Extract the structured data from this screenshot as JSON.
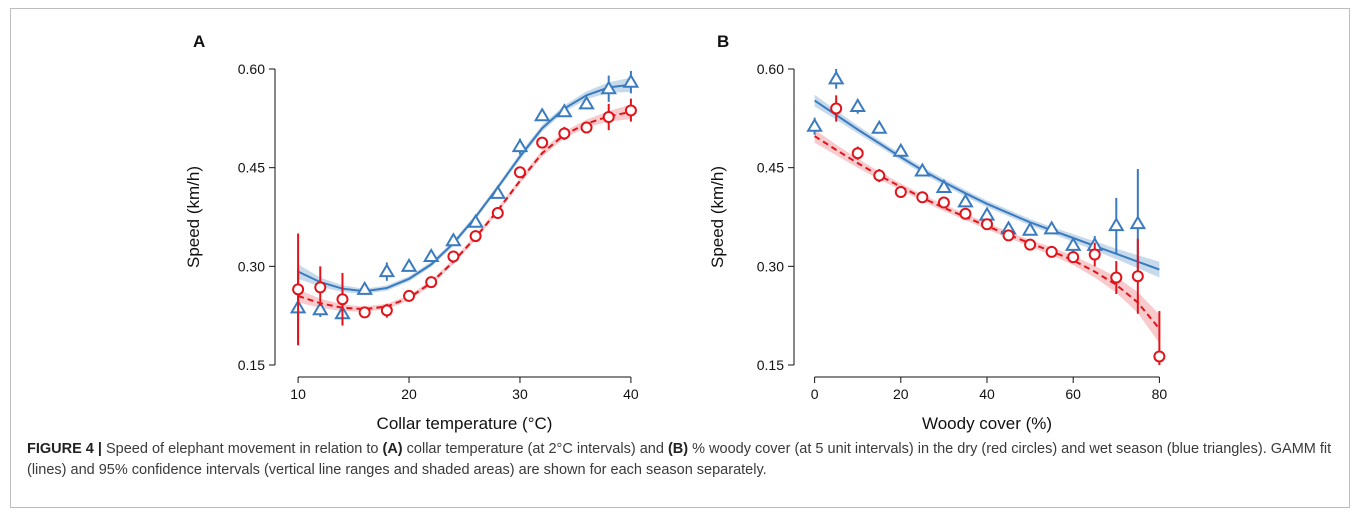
{
  "colors": {
    "dry": "#e0141a",
    "dry_band": "#f6b8bb",
    "wet": "#3a7bbf",
    "wet_band": "#b3cde6",
    "axis": "#111111"
  },
  "chart_data": [
    {
      "type": "scatter",
      "panel_label": "A",
      "xlabel": "Collar temperature (°C)",
      "ylabel": "Speed (km/h)",
      "xlim": [
        9,
        41
      ],
      "ylim": [
        0.15,
        0.6
      ],
      "xticks": [
        10,
        20,
        30,
        40
      ],
      "yticks": [
        "0.15",
        "0.30",
        "0.45",
        "0.60"
      ],
      "grid": false,
      "series": [
        {
          "season": "dry",
          "marker": "circle",
          "line_style": "dashed",
          "points": [
            {
              "x": 10,
              "y": 0.265,
              "lo": 0.18,
              "hi": 0.35
            },
            {
              "x": 12,
              "y": 0.268,
              "lo": 0.24,
              "hi": 0.3
            },
            {
              "x": 14,
              "y": 0.25,
              "lo": 0.21,
              "hi": 0.29
            },
            {
              "x": 16,
              "y": 0.23,
              "lo": 0.225,
              "hi": 0.235
            },
            {
              "x": 18,
              "y": 0.233,
              "lo": 0.222,
              "hi": 0.243
            },
            {
              "x": 20,
              "y": 0.255,
              "lo": 0.249,
              "hi": 0.261
            },
            {
              "x": 22,
              "y": 0.276,
              "lo": 0.27,
              "hi": 0.282
            },
            {
              "x": 24,
              "y": 0.315,
              "lo": 0.309,
              "hi": 0.321
            },
            {
              "x": 26,
              "y": 0.346,
              "lo": 0.34,
              "hi": 0.352
            },
            {
              "x": 28,
              "y": 0.381,
              "lo": 0.375,
              "hi": 0.387
            },
            {
              "x": 30,
              "y": 0.443,
              "lo": 0.435,
              "hi": 0.451
            },
            {
              "x": 32,
              "y": 0.488,
              "lo": 0.48,
              "hi": 0.496
            },
            {
              "x": 34,
              "y": 0.502,
              "lo": 0.492,
              "hi": 0.512
            },
            {
              "x": 36,
              "y": 0.511,
              "lo": 0.503,
              "hi": 0.519
            },
            {
              "x": 38,
              "y": 0.527,
              "lo": 0.507,
              "hi": 0.547
            },
            {
              "x": 40,
              "y": 0.537,
              "lo": 0.52,
              "hi": 0.555
            }
          ],
          "fit": [
            {
              "x": 10,
              "y": 0.255,
              "lo": 0.245,
              "hi": 0.265
            },
            {
              "x": 12,
              "y": 0.244,
              "lo": 0.237,
              "hi": 0.251
            },
            {
              "x": 14,
              "y": 0.237,
              "lo": 0.232,
              "hi": 0.242
            },
            {
              "x": 16,
              "y": 0.235,
              "lo": 0.231,
              "hi": 0.239
            },
            {
              "x": 18,
              "y": 0.239,
              "lo": 0.235,
              "hi": 0.243
            },
            {
              "x": 20,
              "y": 0.252,
              "lo": 0.248,
              "hi": 0.256
            },
            {
              "x": 22,
              "y": 0.275,
              "lo": 0.271,
              "hi": 0.279
            },
            {
              "x": 24,
              "y": 0.307,
              "lo": 0.303,
              "hi": 0.311
            },
            {
              "x": 26,
              "y": 0.344,
              "lo": 0.34,
              "hi": 0.348
            },
            {
              "x": 28,
              "y": 0.385,
              "lo": 0.381,
              "hi": 0.389
            },
            {
              "x": 30,
              "y": 0.43,
              "lo": 0.426,
              "hi": 0.434
            },
            {
              "x": 32,
              "y": 0.472,
              "lo": 0.467,
              "hi": 0.477
            },
            {
              "x": 34,
              "y": 0.5,
              "lo": 0.495,
              "hi": 0.505
            },
            {
              "x": 36,
              "y": 0.517,
              "lo": 0.511,
              "hi": 0.523
            },
            {
              "x": 38,
              "y": 0.528,
              "lo": 0.52,
              "hi": 0.536
            },
            {
              "x": 40,
              "y": 0.535,
              "lo": 0.524,
              "hi": 0.546
            }
          ]
        },
        {
          "season": "wet",
          "marker": "triangle",
          "line_style": "solid",
          "points": [
            {
              "x": 10,
              "y": 0.237,
              "lo": 0.18,
              "hi": 0.295
            },
            {
              "x": 12,
              "y": 0.234,
              "lo": 0.223,
              "hi": 0.245
            },
            {
              "x": 14,
              "y": 0.228,
              "lo": 0.21,
              "hi": 0.246
            },
            {
              "x": 16,
              "y": 0.265,
              "lo": 0.26,
              "hi": 0.27
            },
            {
              "x": 18,
              "y": 0.292,
              "lo": 0.278,
              "hi": 0.306
            },
            {
              "x": 20,
              "y": 0.3,
              "lo": 0.295,
              "hi": 0.305
            },
            {
              "x": 22,
              "y": 0.315,
              "lo": 0.31,
              "hi": 0.32
            },
            {
              "x": 24,
              "y": 0.339,
              "lo": 0.333,
              "hi": 0.345
            },
            {
              "x": 26,
              "y": 0.367,
              "lo": 0.362,
              "hi": 0.372
            },
            {
              "x": 28,
              "y": 0.411,
              "lo": 0.405,
              "hi": 0.417
            },
            {
              "x": 30,
              "y": 0.482,
              "lo": 0.47,
              "hi": 0.494
            },
            {
              "x": 32,
              "y": 0.529,
              "lo": 0.522,
              "hi": 0.536
            },
            {
              "x": 34,
              "y": 0.535,
              "lo": 0.528,
              "hi": 0.542
            },
            {
              "x": 36,
              "y": 0.547,
              "lo": 0.54,
              "hi": 0.554
            },
            {
              "x": 38,
              "y": 0.57,
              "lo": 0.55,
              "hi": 0.59
            },
            {
              "x": 40,
              "y": 0.58,
              "lo": 0.563,
              "hi": 0.597
            }
          ],
          "fit": [
            {
              "x": 10,
              "y": 0.292,
              "lo": 0.281,
              "hi": 0.303
            },
            {
              "x": 12,
              "y": 0.276,
              "lo": 0.269,
              "hi": 0.283
            },
            {
              "x": 14,
              "y": 0.266,
              "lo": 0.261,
              "hi": 0.271
            },
            {
              "x": 16,
              "y": 0.262,
              "lo": 0.258,
              "hi": 0.266
            },
            {
              "x": 18,
              "y": 0.267,
              "lo": 0.263,
              "hi": 0.271
            },
            {
              "x": 20,
              "y": 0.281,
              "lo": 0.277,
              "hi": 0.285
            },
            {
              "x": 22,
              "y": 0.303,
              "lo": 0.299,
              "hi": 0.307
            },
            {
              "x": 24,
              "y": 0.335,
              "lo": 0.331,
              "hi": 0.339
            },
            {
              "x": 26,
              "y": 0.375,
              "lo": 0.371,
              "hi": 0.379
            },
            {
              "x": 28,
              "y": 0.42,
              "lo": 0.416,
              "hi": 0.424
            },
            {
              "x": 30,
              "y": 0.467,
              "lo": 0.462,
              "hi": 0.472
            },
            {
              "x": 32,
              "y": 0.51,
              "lo": 0.505,
              "hi": 0.515
            },
            {
              "x": 34,
              "y": 0.54,
              "lo": 0.535,
              "hi": 0.545
            },
            {
              "x": 36,
              "y": 0.56,
              "lo": 0.554,
              "hi": 0.566
            },
            {
              "x": 38,
              "y": 0.572,
              "lo": 0.564,
              "hi": 0.58
            },
            {
              "x": 40,
              "y": 0.576,
              "lo": 0.565,
              "hi": 0.587
            }
          ]
        }
      ]
    },
    {
      "type": "scatter",
      "panel_label": "B",
      "xlabel": "Woody cover (%)",
      "ylabel": "Speed (km/h)",
      "xlim": [
        -2,
        82
      ],
      "ylim": [
        0.15,
        0.6
      ],
      "xticks": [
        0,
        20,
        40,
        60,
        80
      ],
      "yticks": [
        "0.15",
        "0.30",
        "0.45",
        "0.60"
      ],
      "grid": false,
      "series": [
        {
          "season": "dry",
          "marker": "circle",
          "line_style": "dashed",
          "points": [
            {
              "x": 5,
              "y": 0.54,
              "lo": 0.52,
              "hi": 0.56
            },
            {
              "x": 10,
              "y": 0.472,
              "lo": 0.462,
              "hi": 0.482
            },
            {
              "x": 15,
              "y": 0.438,
              "lo": 0.428,
              "hi": 0.448
            },
            {
              "x": 20,
              "y": 0.413,
              "lo": 0.407,
              "hi": 0.419
            },
            {
              "x": 25,
              "y": 0.405,
              "lo": 0.4,
              "hi": 0.41
            },
            {
              "x": 30,
              "y": 0.397,
              "lo": 0.392,
              "hi": 0.402
            },
            {
              "x": 35,
              "y": 0.38,
              "lo": 0.375,
              "hi": 0.385
            },
            {
              "x": 40,
              "y": 0.364,
              "lo": 0.358,
              "hi": 0.37
            },
            {
              "x": 45,
              "y": 0.347,
              "lo": 0.341,
              "hi": 0.353
            },
            {
              "x": 50,
              "y": 0.333,
              "lo": 0.327,
              "hi": 0.339
            },
            {
              "x": 55,
              "y": 0.322,
              "lo": 0.316,
              "hi": 0.328
            },
            {
              "x": 60,
              "y": 0.314,
              "lo": 0.306,
              "hi": 0.322
            },
            {
              "x": 65,
              "y": 0.318,
              "lo": 0.3,
              "hi": 0.336
            },
            {
              "x": 70,
              "y": 0.283,
              "lo": 0.258,
              "hi": 0.308
            },
            {
              "x": 75,
              "y": 0.285,
              "lo": 0.228,
              "hi": 0.342
            },
            {
              "x": 80,
              "y": 0.163,
              "lo": 0.15,
              "hi": 0.232
            }
          ],
          "fit": [
            {
              "x": 0,
              "y": 0.498,
              "lo": 0.488,
              "hi": 0.508
            },
            {
              "x": 5,
              "y": 0.477,
              "lo": 0.469,
              "hi": 0.485
            },
            {
              "x": 10,
              "y": 0.457,
              "lo": 0.45,
              "hi": 0.464
            },
            {
              "x": 15,
              "y": 0.438,
              "lo": 0.432,
              "hi": 0.444
            },
            {
              "x": 20,
              "y": 0.421,
              "lo": 0.416,
              "hi": 0.426
            },
            {
              "x": 25,
              "y": 0.404,
              "lo": 0.399,
              "hi": 0.409
            },
            {
              "x": 30,
              "y": 0.389,
              "lo": 0.384,
              "hi": 0.394
            },
            {
              "x": 35,
              "y": 0.375,
              "lo": 0.37,
              "hi": 0.38
            },
            {
              "x": 40,
              "y": 0.361,
              "lo": 0.356,
              "hi": 0.366
            },
            {
              "x": 45,
              "y": 0.348,
              "lo": 0.343,
              "hi": 0.353
            },
            {
              "x": 50,
              "y": 0.335,
              "lo": 0.33,
              "hi": 0.34
            },
            {
              "x": 55,
              "y": 0.323,
              "lo": 0.317,
              "hi": 0.329
            },
            {
              "x": 60,
              "y": 0.309,
              "lo": 0.302,
              "hi": 0.316
            },
            {
              "x": 65,
              "y": 0.292,
              "lo": 0.283,
              "hi": 0.301
            },
            {
              "x": 70,
              "y": 0.272,
              "lo": 0.26,
              "hi": 0.284
            },
            {
              "x": 75,
              "y": 0.245,
              "lo": 0.229,
              "hi": 0.261
            },
            {
              "x": 80,
              "y": 0.205,
              "lo": 0.183,
              "hi": 0.227
            }
          ]
        },
        {
          "season": "wet",
          "marker": "triangle",
          "line_style": "solid",
          "points": [
            {
              "x": 0,
              "y": 0.513,
              "lo": 0.5,
              "hi": 0.526
            },
            {
              "x": 5,
              "y": 0.585,
              "lo": 0.57,
              "hi": 0.6
            },
            {
              "x": 10,
              "y": 0.543,
              "lo": 0.532,
              "hi": 0.554
            },
            {
              "x": 15,
              "y": 0.51,
              "lo": 0.502,
              "hi": 0.518
            },
            {
              "x": 20,
              "y": 0.475,
              "lo": 0.468,
              "hi": 0.482
            },
            {
              "x": 25,
              "y": 0.445,
              "lo": 0.439,
              "hi": 0.451
            },
            {
              "x": 30,
              "y": 0.42,
              "lo": 0.414,
              "hi": 0.426
            },
            {
              "x": 35,
              "y": 0.398,
              "lo": 0.392,
              "hi": 0.404
            },
            {
              "x": 40,
              "y": 0.378,
              "lo": 0.372,
              "hi": 0.384
            },
            {
              "x": 45,
              "y": 0.357,
              "lo": 0.351,
              "hi": 0.363
            },
            {
              "x": 50,
              "y": 0.355,
              "lo": 0.349,
              "hi": 0.361
            },
            {
              "x": 55,
              "y": 0.357,
              "lo": 0.351,
              "hi": 0.363
            },
            {
              "x": 60,
              "y": 0.332,
              "lo": 0.322,
              "hi": 0.342
            },
            {
              "x": 65,
              "y": 0.332,
              "lo": 0.318,
              "hi": 0.346
            },
            {
              "x": 70,
              "y": 0.362,
              "lo": 0.32,
              "hi": 0.404
            },
            {
              "x": 75,
              "y": 0.365,
              "lo": 0.282,
              "hi": 0.448
            }
          ],
          "fit": [
            {
              "x": 0,
              "y": 0.552,
              "lo": 0.543,
              "hi": 0.561
            },
            {
              "x": 5,
              "y": 0.53,
              "lo": 0.523,
              "hi": 0.537
            },
            {
              "x": 10,
              "y": 0.508,
              "lo": 0.502,
              "hi": 0.514
            },
            {
              "x": 15,
              "y": 0.487,
              "lo": 0.482,
              "hi": 0.492
            },
            {
              "x": 20,
              "y": 0.466,
              "lo": 0.461,
              "hi": 0.471
            },
            {
              "x": 25,
              "y": 0.446,
              "lo": 0.441,
              "hi": 0.451
            },
            {
              "x": 30,
              "y": 0.428,
              "lo": 0.423,
              "hi": 0.433
            },
            {
              "x": 35,
              "y": 0.411,
              "lo": 0.406,
              "hi": 0.416
            },
            {
              "x": 40,
              "y": 0.395,
              "lo": 0.39,
              "hi": 0.4
            },
            {
              "x": 45,
              "y": 0.381,
              "lo": 0.376,
              "hi": 0.386
            },
            {
              "x": 50,
              "y": 0.367,
              "lo": 0.362,
              "hi": 0.372
            },
            {
              "x": 55,
              "y": 0.355,
              "lo": 0.35,
              "hi": 0.36
            },
            {
              "x": 60,
              "y": 0.343,
              "lo": 0.337,
              "hi": 0.349
            },
            {
              "x": 65,
              "y": 0.331,
              "lo": 0.324,
              "hi": 0.338
            },
            {
              "x": 70,
              "y": 0.319,
              "lo": 0.311,
              "hi": 0.327
            },
            {
              "x": 75,
              "y": 0.307,
              "lo": 0.297,
              "hi": 0.317
            },
            {
              "x": 80,
              "y": 0.295,
              "lo": 0.283,
              "hi": 0.307
            }
          ]
        }
      ]
    }
  ],
  "caption": {
    "label": "FIGURE 4 |",
    "text_1": " Speed of elephant movement in relation to ",
    "ref_a": "(A)",
    "text_2": " collar temperature (at 2°C intervals) and ",
    "ref_b": "(B)",
    "text_3": " % woody cover (at 5 unit intervals) in the dry (red circles) and wet season (blue triangles). GAMM fit (lines) and 95% confidence intervals (vertical line ranges and shaded areas) are shown for each season separately."
  }
}
